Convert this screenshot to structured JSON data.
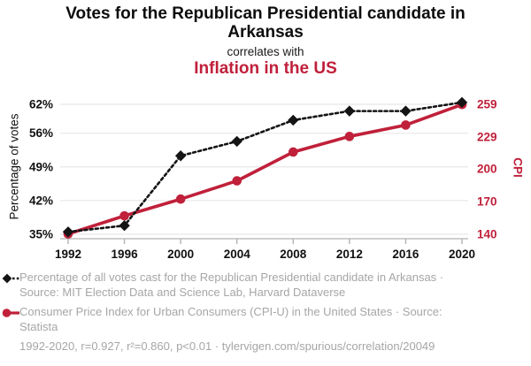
{
  "header": {
    "title": "Votes for the Republican Presidential candidate in Arkansas",
    "subtitle": "correlates with",
    "correlate": "Inflation in the US"
  },
  "colors": {
    "votes_series": "#141414",
    "cpi_series": "#c0203a",
    "grid": "#e8e8e8",
    "axis": "#b3b3b3",
    "tick_label": "#111111",
    "legend_text": "#a6a6a6"
  },
  "chart_data": {
    "type": "line",
    "x": [
      1992,
      1996,
      2000,
      2004,
      2008,
      2012,
      2016,
      2020
    ],
    "x_tick_labels": [
      "1992",
      "1996",
      "2000",
      "2004",
      "2008",
      "2012",
      "2016",
      "2020"
    ],
    "series": [
      {
        "name": "Percentage of all votes cast for the Republican Presidential candidate in Arkansas",
        "axis": "left",
        "values": [
          35.5,
          36.8,
          51.3,
          54.3,
          58.7,
          60.6,
          60.6,
          62.4
        ],
        "color": "#141414",
        "line_style": "dashed",
        "marker": "diamond"
      },
      {
        "name": "Consumer Price Index for Urban Consumers (CPI-U) in the United States",
        "axis": "right",
        "values": [
          140.3,
          156.9,
          172.2,
          188.9,
          215.3,
          229.6,
          240.0,
          258.8
        ],
        "color": "#c0203a",
        "line_style": "solid",
        "marker": "circle"
      }
    ],
    "left_axis": {
      "label": "Percentage of votes",
      "ticks": [
        35,
        42,
        49,
        56,
        62
      ],
      "tick_suffix": "%",
      "range": [
        35,
        62
      ]
    },
    "right_axis": {
      "label": "CPI",
      "ticks": [
        140,
        170,
        200,
        229,
        259
      ],
      "tick_suffix": "",
      "range": [
        140,
        259
      ]
    },
    "grid": "horizontal",
    "legend_position": "bottom"
  },
  "legend": [
    {
      "marker": "black-diamond-dashed-line",
      "text": "Percentage of all votes cast for the Republican Presidential candidate in Arkansas · Source: MIT Election Data and Science Lab, Harvard Dataverse"
    },
    {
      "marker": "red-circle-solid-line",
      "text": "Consumer Price Index for Urban Consumers (CPI-U) in the United States · Source: Statista"
    }
  ],
  "footer": {
    "text": "1992-2020, r=0.927, r²=0.860, p<0.01 · tylervigen.com/spurious/correlation/20049"
  }
}
